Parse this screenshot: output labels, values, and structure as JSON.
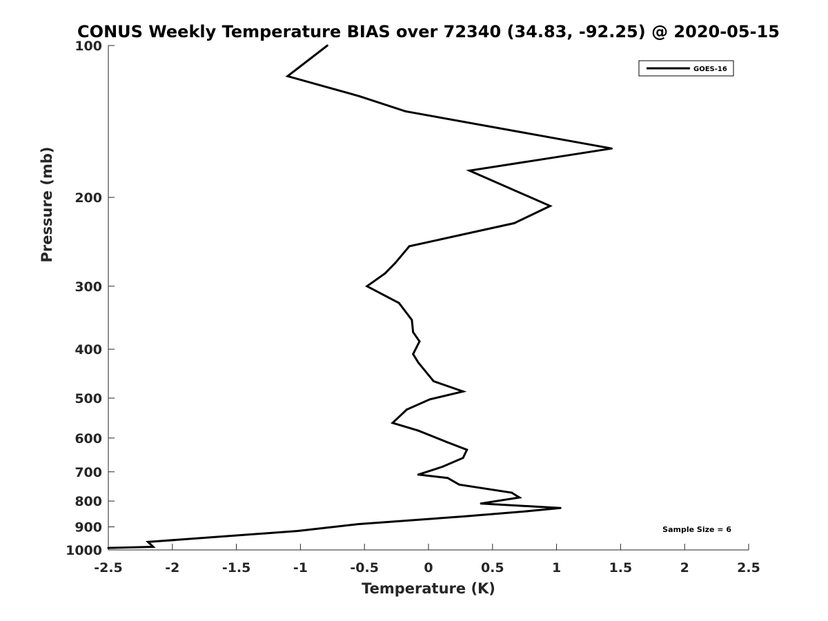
{
  "chart_data": {
    "type": "line",
    "title": "CONUS Weekly Temperature BIAS over 72340 (34.83, -92.25) @ 2020-05-15",
    "xlabel": "Temperature (K)",
    "ylabel": "Pressure (mb)",
    "xlim": [
      -2.5,
      2.5
    ],
    "ylim": [
      1000,
      100
    ],
    "yscale": "log",
    "y_reversed": true,
    "x_ticks": [
      "-2.5",
      "-2",
      "-1.5",
      "-1",
      "-0.5",
      "0",
      "0.5",
      "1",
      "1.5",
      "2",
      "2.5"
    ],
    "x_tick_values": [
      -2.5,
      -2,
      -1.5,
      -1,
      -0.5,
      0,
      0.5,
      1,
      1.5,
      2,
      2.5
    ],
    "y_ticks": [
      "100",
      "200",
      "300",
      "400",
      "500",
      "600",
      "700",
      "800",
      "900",
      "1000"
    ],
    "y_tick_values": [
      100,
      200,
      300,
      400,
      500,
      600,
      700,
      800,
      900,
      1000
    ],
    "grid": false,
    "legend_position": "top-right",
    "annotation": "Sample Size = 6",
    "series": [
      {
        "name": "GOES-16",
        "color": "#000000",
        "x": [
          -0.79,
          -1.1,
          -0.54,
          -0.18,
          1.43,
          0.32,
          0.95,
          0.67,
          -0.15,
          -0.26,
          -0.34,
          -0.48,
          -0.23,
          -0.13,
          -0.12,
          -0.07,
          -0.12,
          -0.08,
          0.04,
          0.27,
          0.01,
          -0.17,
          -0.28,
          -0.08,
          0.15,
          0.3,
          0.27,
          0.11,
          -0.08,
          0.15,
          0.24,
          0.65,
          0.71,
          0.41,
          1.03,
          0.77,
          0.28,
          -0.55,
          -1.02,
          -2.19,
          -2.15,
          -2.5
        ],
        "y": [
          100,
          115,
          126,
          135,
          160,
          177,
          208,
          225,
          250,
          270,
          283,
          300,
          324,
          350,
          370,
          386,
          409,
          425,
          463,
          485,
          503,
          527,
          560,
          580,
          612,
          633,
          657,
          684,
          709,
          720,
          742,
          770,
          787,
          809,
          826,
          838,
          858,
          889,
          917,
          964,
          986,
          991
        ]
      }
    ]
  }
}
